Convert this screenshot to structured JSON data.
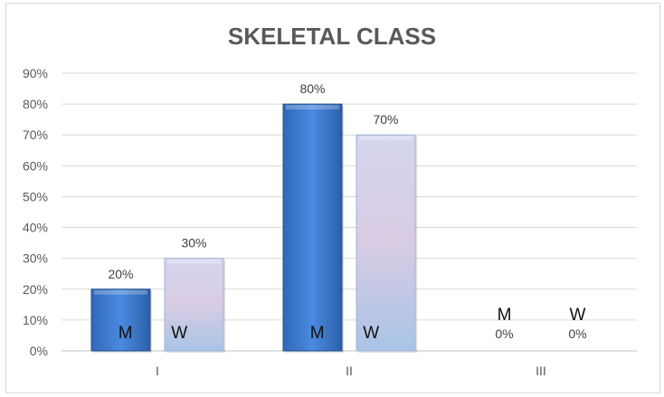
{
  "chart_data": {
    "type": "bar",
    "title": "SKELETAL CLASS",
    "categories": [
      "I",
      "II",
      "III"
    ],
    "series": [
      {
        "name": "M",
        "values": [
          20,
          80,
          0
        ],
        "color": "#3a7bd5"
      },
      {
        "name": "W",
        "values": [
          30,
          70,
          0
        ],
        "color": "#c9cde8"
      }
    ],
    "data_labels": [
      [
        "20%",
        "80%",
        "0%"
      ],
      [
        "30%",
        "70%",
        "0%"
      ]
    ],
    "ylim": [
      0,
      90
    ],
    "yticks": [
      "0%",
      "10%",
      "20%",
      "30%",
      "40%",
      "50%",
      "60%",
      "70%",
      "80%",
      "90%"
    ],
    "grid": true,
    "xlabel": "",
    "ylabel": ""
  }
}
